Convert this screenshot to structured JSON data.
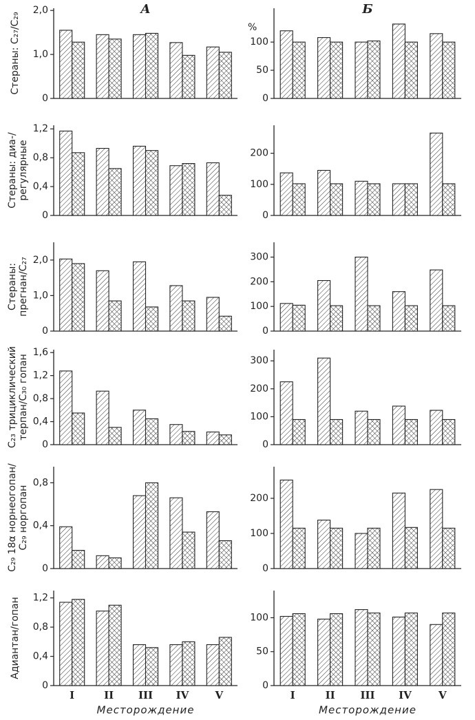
{
  "chart_data": [
    {
      "type": "bar",
      "title": "А",
      "ylabel": [
        "Стераны: C₂₇/C₂₉"
      ],
      "ylim": [
        0,
        2.05
      ],
      "yticks": [
        0,
        {
          "value": 1,
          "label": "1,0"
        },
        {
          "value": 2,
          "label": "2,0"
        }
      ],
      "series": [
        {
          "pattern": "hatch",
          "values": [
            1.55,
            1.45,
            1.45,
            1.27,
            1.17
          ]
        },
        {
          "pattern": "crosshatch",
          "values": [
            1.28,
            1.35,
            1.48,
            0.98,
            1.05
          ]
        }
      ]
    },
    {
      "type": "bar",
      "title": "Б",
      "ylabel": [
        "%"
      ],
      "ylim": [
        0,
        160
      ],
      "yticks": [
        0,
        50,
        100
      ],
      "series": [
        {
          "pattern": "hatch",
          "values": [
            120,
            108,
            100,
            132,
            115
          ]
        },
        {
          "pattern": "crosshatch",
          "values": [
            100,
            100,
            102,
            100,
            100
          ]
        }
      ]
    },
    {
      "type": "bar",
      "ylabel": [
        "Стераны: диа-/",
        "регулярные"
      ],
      "ylim": [
        0,
        1.25
      ],
      "yticks": [
        0,
        {
          "value": 0.4,
          "label": "0,4"
        },
        {
          "value": 0.8,
          "label": "0,8"
        },
        {
          "value": 1.2,
          "label": "1,2"
        }
      ],
      "series": [
        {
          "pattern": "hatch",
          "values": [
            1.17,
            0.93,
            0.96,
            0.69,
            0.73
          ]
        },
        {
          "pattern": "crosshatch",
          "values": [
            0.87,
            0.65,
            0.9,
            0.72,
            0.28
          ]
        }
      ]
    },
    {
      "type": "bar",
      "ylim": [
        0,
        290
      ],
      "yticks": [
        0,
        100,
        200
      ],
      "series": [
        {
          "pattern": "hatch",
          "values": [
            137,
            145,
            110,
            102,
            265
          ]
        },
        {
          "pattern": "crosshatch",
          "values": [
            102,
            102,
            102,
            102,
            102
          ]
        }
      ]
    },
    {
      "type": "bar",
      "ylabel": [
        "Стераны:",
        "прегнан/C₂₇"
      ],
      "ylim": [
        0,
        2.5
      ],
      "yticks": [
        0,
        {
          "value": 1,
          "label": "1,0"
        },
        {
          "value": 2,
          "label": "2,0"
        }
      ],
      "series": [
        {
          "pattern": "hatch",
          "values": [
            2.03,
            1.7,
            1.95,
            1.28,
            0.95
          ]
        },
        {
          "pattern": "crosshatch",
          "values": [
            1.9,
            0.85,
            0.68,
            0.85,
            0.42
          ]
        }
      ]
    },
    {
      "type": "bar",
      "ylim": [
        0,
        360
      ],
      "yticks": [
        0,
        100,
        200,
        300
      ],
      "series": [
        {
          "pattern": "hatch",
          "values": [
            112,
            205,
            300,
            160,
            248
          ]
        },
        {
          "pattern": "crosshatch",
          "values": [
            105,
            103,
            103,
            103,
            103
          ]
        }
      ]
    },
    {
      "type": "bar",
      "ylabel": [
        "C₂₃ трициклический",
        "терпан/C₃₀ гопан"
      ],
      "ylim": [
        0,
        1.65
      ],
      "yticks": [
        0,
        {
          "value": 0.4,
          "label": "0,4"
        },
        {
          "value": 0.8,
          "label": "0,8"
        },
        {
          "value": 1.2,
          "label": "1,2"
        },
        {
          "value": 1.6,
          "label": "1,6"
        }
      ],
      "series": [
        {
          "pattern": "hatch",
          "values": [
            1.28,
            0.93,
            0.6,
            0.35,
            0.22
          ]
        },
        {
          "pattern": "crosshatch",
          "values": [
            0.55,
            0.3,
            0.45,
            0.23,
            0.17
          ]
        }
      ]
    },
    {
      "type": "bar",
      "ylim": [
        0,
        340
      ],
      "yticks": [
        0,
        100,
        200,
        300
      ],
      "series": [
        {
          "pattern": "hatch",
          "values": [
            225,
            310,
            120,
            138,
            123
          ]
        },
        {
          "pattern": "crosshatch",
          "values": [
            90,
            90,
            90,
            90,
            90
          ]
        }
      ]
    },
    {
      "type": "bar",
      "ylabel": [
        "C₂₉ 18α норнеогопан/",
        "C₂₉ норгопан"
      ],
      "ylim": [
        0,
        0.95
      ],
      "yticks": [
        0,
        {
          "value": 0.4,
          "label": "0,4"
        },
        {
          "value": 0.8,
          "label": "0,8"
        }
      ],
      "series": [
        {
          "pattern": "hatch",
          "values": [
            0.39,
            0.12,
            0.68,
            0.66,
            0.53
          ]
        },
        {
          "pattern": "crosshatch",
          "values": [
            0.17,
            0.1,
            0.8,
            0.34,
            0.26
          ]
        }
      ]
    },
    {
      "type": "bar",
      "ylim": [
        0,
        290
      ],
      "yticks": [
        0,
        100,
        200
      ],
      "series": [
        {
          "pattern": "hatch",
          "values": [
            252,
            138,
            100,
            215,
            225
          ]
        },
        {
          "pattern": "crosshatch",
          "values": [
            115,
            115,
            115,
            117,
            115
          ]
        }
      ]
    },
    {
      "type": "bar",
      "ylabel": [
        "Адиантан/гопан"
      ],
      "ylim": [
        0,
        1.3
      ],
      "yticks": [
        0,
        {
          "value": 0.4,
          "label": "0,4"
        },
        {
          "value": 0.8,
          "label": "0,8"
        },
        {
          "value": 1.2,
          "label": "1,2"
        }
      ],
      "categories": [
        "I",
        "II",
        "III",
        "IV",
        "V"
      ],
      "xlabel": "Месторождение",
      "series": [
        {
          "pattern": "hatch",
          "values": [
            1.14,
            1.02,
            0.56,
            0.56,
            0.56
          ]
        },
        {
          "pattern": "crosshatch",
          "values": [
            1.18,
            1.1,
            0.52,
            0.6,
            0.66
          ]
        }
      ]
    },
    {
      "type": "bar",
      "ylim": [
        0,
        140
      ],
      "yticks": [
        0,
        50,
        100
      ],
      "categories": [
        "I",
        "II",
        "III",
        "IV",
        "V"
      ],
      "xlabel": "Месторождение",
      "series": [
        {
          "pattern": "hatch",
          "values": [
            102,
            98,
            112,
            101,
            90
          ]
        },
        {
          "pattern": "crosshatch",
          "values": [
            106,
            106,
            107,
            107,
            107
          ]
        }
      ]
    }
  ]
}
